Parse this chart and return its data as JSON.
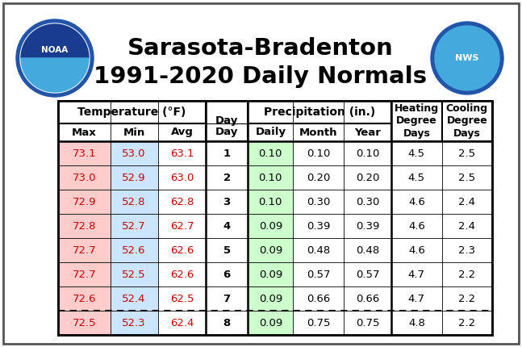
{
  "title_line1": "Sarasota-Bradenton",
  "title_line2": "1991-2020 Daily Normals",
  "title_fontsize": 21,
  "bg_color": "#ffffff",
  "table_data": [
    [
      73.1,
      53.0,
      63.1,
      1,
      0.1,
      0.1,
      0.1,
      4.5,
      2.5
    ],
    [
      73.0,
      52.9,
      63.0,
      2,
      0.1,
      0.2,
      0.2,
      4.5,
      2.5
    ],
    [
      72.9,
      52.8,
      62.8,
      3,
      0.1,
      0.3,
      0.3,
      4.6,
      2.4
    ],
    [
      72.8,
      52.7,
      62.7,
      4,
      0.09,
      0.39,
      0.39,
      4.6,
      2.4
    ],
    [
      72.7,
      52.6,
      62.6,
      5,
      0.09,
      0.48,
      0.48,
      4.6,
      2.3
    ],
    [
      72.7,
      52.5,
      62.6,
      6,
      0.09,
      0.57,
      0.57,
      4.7,
      2.2
    ],
    [
      72.6,
      52.4,
      62.5,
      7,
      0.09,
      0.66,
      0.66,
      4.7,
      2.2
    ],
    [
      72.5,
      52.3,
      62.4,
      8,
      0.09,
      0.75,
      0.75,
      4.8,
      2.2
    ]
  ],
  "max_col_color": "#ffcccc",
  "min_col_color": "#cce5ff",
  "avg_col_color": "#ffffff",
  "day_col_color": "#ffffff",
  "daily_col_color": "#ccffcc",
  "month_col_color": "#ffffff",
  "year_col_color": "#ffffff",
  "hdd_col_color": "#ffffff",
  "cdd_col_color": "#ffffff",
  "dashed_after_row": 6,
  "text_color": "#000000",
  "red_color": "#cc0000",
  "data_fontsize": 9.5,
  "header_fontsize": 9.5,
  "group_header_fontsize": 10
}
